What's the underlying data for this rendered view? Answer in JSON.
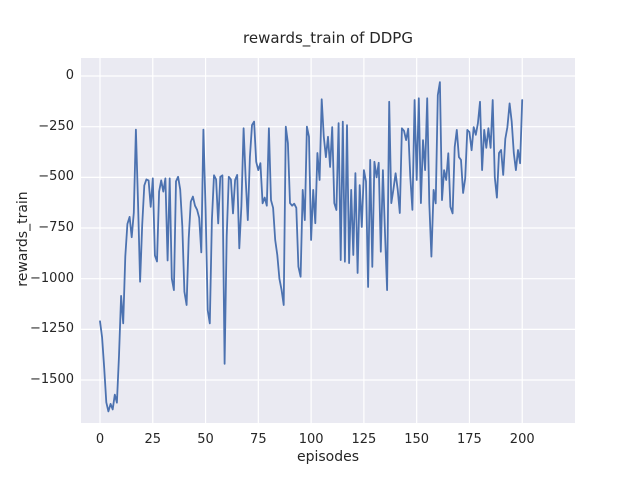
{
  "figure": {
    "title": "rewards_train of DDPG",
    "xlabel": "episodes",
    "ylabel": "rewards_train"
  },
  "chart_data": {
    "type": "line",
    "title": "rewards_train of DDPG",
    "xlabel": "episodes",
    "ylabel": "rewards_train",
    "legend": false,
    "grid": true,
    "xticks": [
      0,
      25,
      50,
      75,
      100,
      125,
      150,
      175,
      200
    ],
    "yticks": [
      0,
      -250,
      -500,
      -750,
      -1000,
      -1250,
      -1500
    ],
    "xlim": [
      -9,
      225
    ],
    "ylim": [
      -1712,
      89
    ],
    "x": [
      0,
      1,
      2,
      3,
      4,
      5,
      6,
      7,
      8,
      9,
      10,
      11,
      12,
      13,
      14,
      15,
      16,
      17,
      18,
      19,
      20,
      21,
      22,
      23,
      24,
      25,
      26,
      27,
      28,
      29,
      30,
      31,
      32,
      33,
      34,
      35,
      36,
      37,
      38,
      39,
      40,
      41,
      42,
      43,
      44,
      45,
      46,
      47,
      48,
      49,
      50,
      51,
      52,
      53,
      54,
      55,
      56,
      57,
      58,
      59,
      60,
      61,
      62,
      63,
      64,
      65,
      66,
      67,
      68,
      69,
      70,
      71,
      72,
      73,
      74,
      75,
      76,
      77,
      78,
      79,
      80,
      81,
      82,
      83,
      84,
      85,
      86,
      87,
      88,
      89,
      90,
      91,
      92,
      93,
      94,
      95,
      96,
      97,
      98,
      99,
      100,
      101,
      102,
      103,
      104,
      105,
      106,
      107,
      108,
      109,
      110,
      111,
      112,
      113,
      114,
      115,
      116,
      117,
      118,
      119,
      120,
      121,
      122,
      123,
      124,
      125,
      126,
      127,
      128,
      129,
      130,
      131,
      132,
      133,
      134,
      135,
      136,
      137,
      138,
      139,
      140,
      141,
      142,
      143,
      144,
      145,
      146,
      147,
      148,
      149,
      150,
      151,
      152,
      153,
      154,
      155,
      156,
      157,
      158,
      159,
      160,
      161,
      162,
      163,
      164,
      165,
      166,
      167,
      168,
      169,
      170,
      171,
      172,
      173,
      174,
      175,
      176,
      177,
      178,
      179,
      180,
      181,
      182,
      183,
      184,
      185,
      186,
      187,
      188,
      189,
      190,
      191,
      192,
      193,
      194,
      195,
      196,
      197,
      198,
      199,
      200
    ],
    "series": [
      {
        "name": "rewards_train",
        "values": [
          -1210,
          -1290,
          -1440,
          -1610,
          -1655,
          -1618,
          -1645,
          -1572,
          -1612,
          -1380,
          -1085,
          -1220,
          -890,
          -730,
          -695,
          -795,
          -675,
          -265,
          -620,
          -1015,
          -735,
          -540,
          -510,
          -515,
          -645,
          -505,
          -885,
          -915,
          -570,
          -515,
          -570,
          -505,
          -910,
          -505,
          -1000,
          -1056,
          -520,
          -497,
          -560,
          -740,
          -1064,
          -1130,
          -801,
          -620,
          -595,
          -640,
          -660,
          -700,
          -870,
          -265,
          -660,
          -1155,
          -1220,
          -710,
          -490,
          -510,
          -727,
          -497,
          -490,
          -1420,
          -790,
          -497,
          -510,
          -678,
          -513,
          -488,
          -850,
          -640,
          -258,
          -510,
          -711,
          -400,
          -242,
          -225,
          -423,
          -464,
          -430,
          -628,
          -600,
          -640,
          -258,
          -612,
          -650,
          -809,
          -883,
          -1000,
          -1056,
          -1130,
          -250,
          -331,
          -627,
          -640,
          -630,
          -650,
          -941,
          -990,
          -562,
          -711,
          -250,
          -300,
          -809,
          -562,
          -726,
          -380,
          -513,
          -115,
          -300,
          -400,
          -300,
          -449,
          -252,
          -627,
          -661,
          -232,
          -908,
          -225,
          -916,
          -242,
          -923,
          -562,
          -883,
          -479,
          -972,
          -538,
          -745,
          -464,
          -520,
          -1041,
          -414,
          -942,
          -423,
          -500,
          -428,
          -867,
          -464,
          -775,
          -1056,
          -127,
          -627,
          -560,
          -480,
          -560,
          -676,
          -258,
          -270,
          -316,
          -260,
          -498,
          -660,
          -118,
          -513,
          -110,
          -627,
          -316,
          -464,
          -110,
          -628,
          -891,
          -562,
          -628,
          -94,
          -30,
          -612,
          -464,
          -513,
          -381,
          -645,
          -678,
          -350,
          -266,
          -400,
          -414,
          -577,
          -505,
          -266,
          -276,
          -366,
          -252,
          -290,
          -233,
          -127,
          -464,
          -266,
          -354,
          -258,
          -354,
          -118,
          -500,
          -600,
          -380,
          -365,
          -488,
          -310,
          -252,
          -135,
          -225,
          -380,
          -464,
          -365,
          -430,
          -118
        ]
      }
    ],
    "style": {
      "line_color": "#4c72b0",
      "plot_bg": "#eaeaf2",
      "grid_color": "#ffffff",
      "text_color": "#262626",
      "figure_bg": "#ffffff",
      "line_width": 1.8
    }
  }
}
